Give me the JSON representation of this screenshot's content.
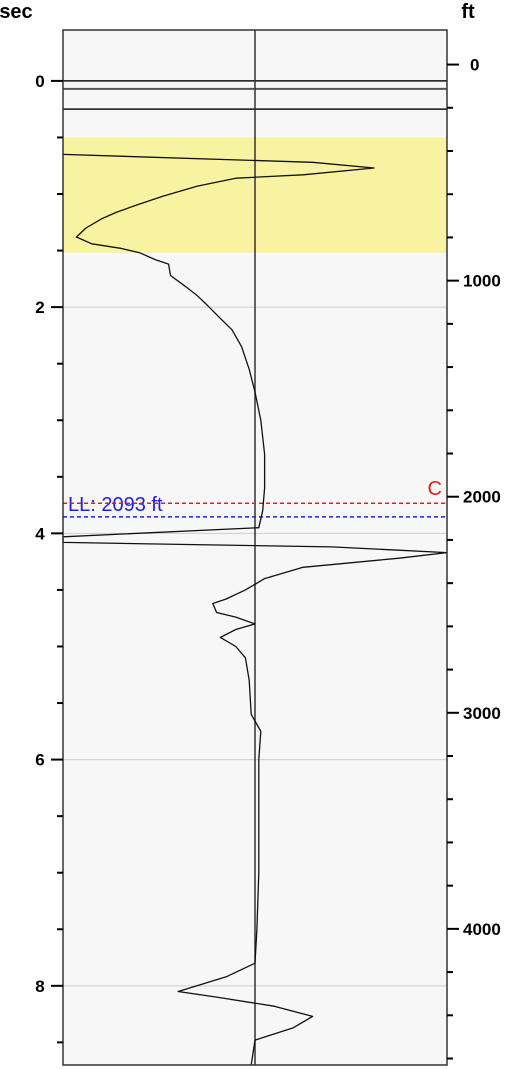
{
  "chart_data": {
    "type": "line",
    "title": "",
    "left_axis": {
      "unit_label": "sec",
      "range": [
        -0.45,
        8.7
      ],
      "ticks": [
        0,
        2,
        4,
        6,
        8
      ],
      "minor_step": 0.5,
      "gridlines": [
        2,
        4,
        6,
        8
      ]
    },
    "right_axis": {
      "unit_label": "ft",
      "range": [
        -160,
        4630
      ],
      "ticks": [
        0,
        1000,
        2000,
        3000,
        4000
      ],
      "minor_step": 200
    },
    "x_range": [
      -1,
      1
    ],
    "highlight_band": {
      "from_sec": 0.5,
      "to_sec": 1.52,
      "color": "#f7f3a0"
    },
    "horizontal_lines_sec": [
      0,
      0.07,
      0.25
    ],
    "markers": [
      {
        "text": "LL: 2093 ft",
        "depth_ft": 2093,
        "color": "#2020e0",
        "text_side": "left"
      },
      {
        "text": "C",
        "depth_ft": 2030,
        "color": "#e02020",
        "text_side": "right"
      }
    ],
    "series": [
      {
        "points": [
          [
            -1.0,
            0.65
          ],
          [
            0.3,
            0.72
          ],
          [
            0.62,
            0.77
          ],
          [
            0.25,
            0.83
          ],
          [
            -0.1,
            0.86
          ],
          [
            -0.3,
            0.93
          ],
          [
            -0.48,
            1.02
          ],
          [
            -0.62,
            1.1
          ],
          [
            -0.72,
            1.16
          ],
          [
            -0.8,
            1.22
          ],
          [
            -0.88,
            1.3
          ],
          [
            -0.93,
            1.38
          ],
          [
            -0.85,
            1.44
          ],
          [
            -0.7,
            1.48
          ],
          [
            -0.6,
            1.52
          ],
          [
            -0.52,
            1.58
          ],
          [
            -0.45,
            1.62
          ],
          [
            -0.44,
            1.72
          ],
          [
            -0.36,
            1.82
          ],
          [
            -0.3,
            1.9
          ],
          [
            -0.25,
            1.98
          ],
          [
            -0.18,
            2.1
          ],
          [
            -0.12,
            2.2
          ],
          [
            -0.07,
            2.35
          ],
          [
            -0.03,
            2.55
          ],
          [
            0.0,
            2.75
          ],
          [
            0.03,
            3.0
          ],
          [
            0.05,
            3.3
          ],
          [
            0.05,
            3.6
          ],
          [
            0.04,
            3.8
          ],
          [
            0.02,
            3.95
          ],
          [
            -1.0,
            4.03
          ],
          [
            -1.0,
            4.08
          ],
          [
            0.4,
            4.12
          ],
          [
            1.0,
            4.17
          ],
          [
            0.75,
            4.22
          ],
          [
            0.25,
            4.3
          ],
          [
            0.05,
            4.4
          ],
          [
            -0.05,
            4.5
          ],
          [
            -0.15,
            4.58
          ],
          [
            -0.22,
            4.62
          ],
          [
            -0.2,
            4.7
          ],
          [
            -0.1,
            4.74
          ],
          [
            0.0,
            4.8
          ],
          [
            -0.1,
            4.85
          ],
          [
            -0.18,
            4.92
          ],
          [
            -0.1,
            5.0
          ],
          [
            -0.05,
            5.1
          ],
          [
            -0.03,
            5.3
          ],
          [
            -0.02,
            5.6
          ],
          [
            0.03,
            5.75
          ],
          [
            0.02,
            6.0
          ],
          [
            0.02,
            6.5
          ],
          [
            0.02,
            7.0
          ],
          [
            0.01,
            7.5
          ],
          [
            0.0,
            7.8
          ],
          [
            -0.15,
            7.92
          ],
          [
            -0.4,
            8.05
          ],
          [
            -0.2,
            8.1
          ],
          [
            0.1,
            8.18
          ],
          [
            0.3,
            8.27
          ],
          [
            0.2,
            8.37
          ],
          [
            0.0,
            8.48
          ],
          [
            -0.02,
            8.7
          ]
        ]
      }
    ],
    "grid": true,
    "legend": "none"
  }
}
